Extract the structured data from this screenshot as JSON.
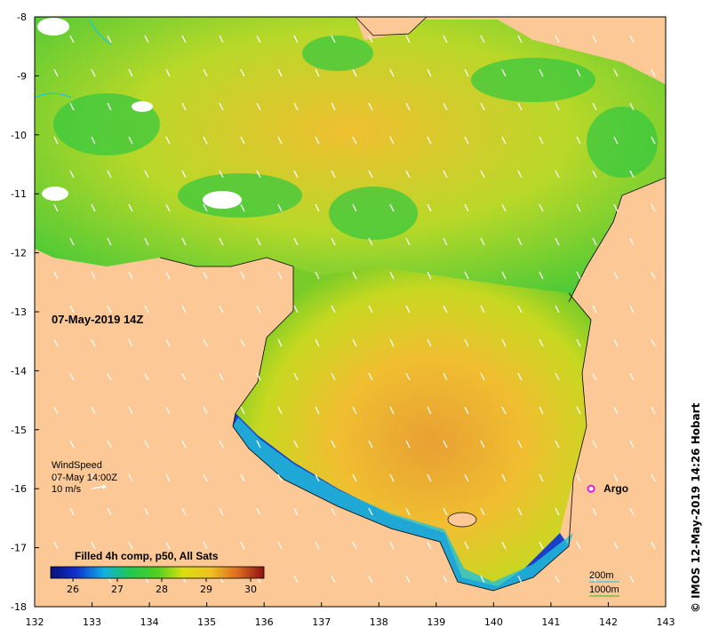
{
  "map": {
    "timestamp": "07-May-2019 14Z",
    "credit": "© IMOS 12-May-2019 14:26 Hobart",
    "lon_ticks": [
      "132",
      "133",
      "134",
      "135",
      "136",
      "137",
      "138",
      "139",
      "140",
      "141",
      "142",
      "143"
    ],
    "lat_ticks": [
      "-8",
      "-9",
      "-10",
      "-11",
      "-12",
      "-13",
      "-14",
      "-15",
      "-16",
      "-17",
      "-18"
    ],
    "lon_range": [
      132,
      143
    ],
    "lat_range": [
      -18,
      -8
    ],
    "land_color": "#fbc896",
    "wind": {
      "title": "WindSpeed",
      "time": "07-May 14:00Z",
      "scale": "10 m/s"
    },
    "colorbar": {
      "title": "Filled 4h comp, p50, All Sats",
      "ticks": [
        "26",
        "27",
        "28",
        "29",
        "30"
      ],
      "range": [
        25.5,
        30.3
      ]
    },
    "contours": {
      "c200": "200m",
      "c1000": "1000m"
    },
    "argo": {
      "label": "Argo",
      "lon": 141.7,
      "lat": -16.0,
      "color": "#e619e6"
    }
  }
}
